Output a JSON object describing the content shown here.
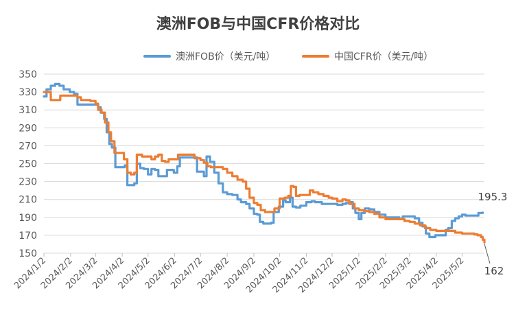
{
  "chart_data": {
    "type": "line",
    "title": "澳洲FOB与中国CFR价格对比",
    "ylim": [
      150,
      350
    ],
    "yticks": [
      "150",
      "170",
      "190",
      "210",
      "230",
      "250",
      "270",
      "290",
      "310",
      "330",
      "350"
    ],
    "xticks": [
      "2024/1/2",
      "2024/2/2",
      "2024/3/2",
      "2024/4/2",
      "2024/5/2",
      "2024/6/2",
      "2024/7/2",
      "2024/8/2",
      "2024/9/2",
      "2024/10/2",
      "2024/11/2",
      "2024/12/2",
      "2025/1/2",
      "2025/2/2",
      "2025/3/2",
      "2025/4/2",
      "2025/5/2"
    ],
    "grid": true,
    "legend_position": "top",
    "series": [
      {
        "name": "澳洲FOB价（美元/吨）",
        "color": "#5B9BD5",
        "points": [
          [
            "2024/1/2",
            325
          ],
          [
            "2024/1/5",
            333
          ],
          [
            "2024/1/10",
            337
          ],
          [
            "2024/1/15",
            339
          ],
          [
            "2024/1/20",
            337
          ],
          [
            "2024/1/25",
            333
          ],
          [
            "2024/2/1",
            330
          ],
          [
            "2024/2/6",
            328
          ],
          [
            "2024/2/10",
            316
          ],
          [
            "2024/2/20",
            316
          ],
          [
            "2024/3/1",
            316
          ],
          [
            "2024/3/5",
            313
          ],
          [
            "2024/3/8",
            307
          ],
          [
            "2024/3/12",
            300
          ],
          [
            "2024/3/15",
            285
          ],
          [
            "2024/3/18",
            272
          ],
          [
            "2024/3/21",
            268
          ],
          [
            "2024/3/25",
            246
          ],
          [
            "2024/4/1",
            246
          ],
          [
            "2024/4/5",
            248
          ],
          [
            "2024/4/8",
            226
          ],
          [
            "2024/4/12",
            226
          ],
          [
            "2024/4/16",
            228
          ],
          [
            "2024/4/19",
            250
          ],
          [
            "2024/4/23",
            245
          ],
          [
            "2024/4/27",
            244
          ],
          [
            "2024/5/2",
            238
          ],
          [
            "2024/5/6",
            244
          ],
          [
            "2024/5/10",
            243
          ],
          [
            "2024/5/14",
            236
          ],
          [
            "2024/5/20",
            236
          ],
          [
            "2024/5/24",
            243
          ],
          [
            "2024/6/1",
            240
          ],
          [
            "2024/6/5",
            247
          ],
          [
            "2024/6/8",
            257
          ],
          [
            "2024/6/15",
            257
          ],
          [
            "2024/6/25",
            257
          ],
          [
            "2024/6/28",
            241
          ],
          [
            "2024/7/2",
            241
          ],
          [
            "2024/7/6",
            236
          ],
          [
            "2024/7/9",
            258
          ],
          [
            "2024/7/13",
            252
          ],
          [
            "2024/7/18",
            240
          ],
          [
            "2024/7/23",
            228
          ],
          [
            "2024/7/28",
            218
          ],
          [
            "2024/8/2",
            216
          ],
          [
            "2024/8/8",
            215
          ],
          [
            "2024/8/14",
            210
          ],
          [
            "2024/8/18",
            207
          ],
          [
            "2024/8/24",
            205
          ],
          [
            "2024/8/28",
            200
          ],
          [
            "2024/9/2",
            194
          ],
          [
            "2024/9/6",
            193
          ],
          [
            "2024/9/9",
            185
          ],
          [
            "2024/9/13",
            183
          ],
          [
            "2024/9/18",
            183
          ],
          [
            "2024/9/22",
            184
          ],
          [
            "2024/9/25",
            196
          ],
          [
            "2024/10/1",
            202
          ],
          [
            "2024/10/6",
            209
          ],
          [
            "2024/10/9",
            207
          ],
          [
            "2024/10/14",
            212
          ],
          [
            "2024/10/17",
            202
          ],
          [
            "2024/10/21",
            201
          ],
          [
            "2024/10/26",
            203
          ],
          [
            "2024/11/2",
            207
          ],
          [
            "2024/11/8",
            208
          ],
          [
            "2024/11/12",
            207
          ],
          [
            "2024/11/20",
            205
          ],
          [
            "2024/11/28",
            205
          ],
          [
            "2024/12/2",
            205
          ],
          [
            "2024/12/8",
            204
          ],
          [
            "2024/12/14",
            205
          ],
          [
            "2024/12/18",
            206
          ],
          [
            "2024/12/22",
            207
          ],
          [
            "2024/12/26",
            200
          ],
          [
            "2024/12/29",
            195
          ],
          [
            "2025/1/2",
            188
          ],
          [
            "2025/1/5",
            195
          ],
          [
            "2025/1/9",
            200
          ],
          [
            "2025/1/14",
            199
          ],
          [
            "2025/1/20",
            196
          ],
          [
            "2025/1/26",
            193
          ],
          [
            "2025/2/2",
            190
          ],
          [
            "2025/2/8",
            190
          ],
          [
            "2025/2/14",
            190
          ],
          [
            "2025/2/18",
            188
          ],
          [
            "2025/2/22",
            191
          ],
          [
            "2025/3/2",
            191
          ],
          [
            "2025/3/8",
            189
          ],
          [
            "2025/3/13",
            184
          ],
          [
            "2025/3/17",
            180
          ],
          [
            "2025/3/21",
            172
          ],
          [
            "2025/3/25",
            168
          ],
          [
            "2025/4/1",
            170
          ],
          [
            "2025/4/8",
            170
          ],
          [
            "2025/4/13",
            176
          ],
          [
            "2025/4/16",
            178
          ],
          [
            "2025/4/20",
            186
          ],
          [
            "2025/4/24",
            189
          ],
          [
            "2025/4/28",
            191
          ],
          [
            "2025/5/2",
            193
          ],
          [
            "2025/5/6",
            192
          ],
          [
            "2025/5/12",
            192
          ],
          [
            "2025/5/18",
            192
          ],
          [
            "2025/5/21",
            195
          ],
          [
            "2025/5/26",
            195.3
          ]
        ]
      },
      {
        "name": "中国CFR价（美元/吨）",
        "color": "#ED7D31",
        "points": [
          [
            "2024/1/2",
            330
          ],
          [
            "2024/1/6",
            330
          ],
          [
            "2024/1/10",
            321
          ],
          [
            "2024/1/17",
            321
          ],
          [
            "2024/1/21",
            326
          ],
          [
            "2024/2/1",
            326
          ],
          [
            "2024/2/10",
            324
          ],
          [
            "2024/2/14",
            321
          ],
          [
            "2024/2/25",
            320
          ],
          [
            "2024/3/2",
            317
          ],
          [
            "2024/3/5",
            310
          ],
          [
            "2024/3/9",
            307
          ],
          [
            "2024/3/13",
            296
          ],
          [
            "2024/3/17",
            285
          ],
          [
            "2024/3/20",
            275
          ],
          [
            "2024/3/24",
            262
          ],
          [
            "2024/4/1",
            262
          ],
          [
            "2024/4/4",
            255
          ],
          [
            "2024/4/8",
            240
          ],
          [
            "2024/4/12",
            238
          ],
          [
            "2024/4/16",
            240
          ],
          [
            "2024/4/19",
            260
          ],
          [
            "2024/4/25",
            258
          ],
          [
            "2024/5/2",
            258
          ],
          [
            "2024/5/6",
            255
          ],
          [
            "2024/5/10",
            258
          ],
          [
            "2024/5/14",
            260
          ],
          [
            "2024/5/18",
            253
          ],
          [
            "2024/5/22",
            252
          ],
          [
            "2024/5/26",
            255
          ],
          [
            "2024/6/2",
            255
          ],
          [
            "2024/6/6",
            260
          ],
          [
            "2024/6/12",
            260
          ],
          [
            "2024/6/18",
            260
          ],
          [
            "2024/6/25",
            256
          ],
          [
            "2024/7/2",
            254
          ],
          [
            "2024/7/6",
            251
          ],
          [
            "2024/7/10",
            247
          ],
          [
            "2024/7/14",
            246
          ],
          [
            "2024/7/22",
            246
          ],
          [
            "2024/7/28",
            244
          ],
          [
            "2024/8/2",
            240
          ],
          [
            "2024/8/8",
            236
          ],
          [
            "2024/8/14",
            232
          ],
          [
            "2024/8/20",
            230
          ],
          [
            "2024/8/24",
            222
          ],
          [
            "2024/8/28",
            212
          ],
          [
            "2024/9/2",
            206
          ],
          [
            "2024/9/6",
            204
          ],
          [
            "2024/9/10",
            198
          ],
          [
            "2024/9/15",
            196
          ],
          [
            "2024/9/20",
            196
          ],
          [
            "2024/9/26",
            200
          ],
          [
            "2024/10/2",
            211
          ],
          [
            "2024/10/8",
            212
          ],
          [
            "2024/10/12",
            214
          ],
          [
            "2024/10/15",
            225
          ],
          [
            "2024/10/18",
            224
          ],
          [
            "2024/10/21",
            214
          ],
          [
            "2024/10/25",
            215
          ],
          [
            "2024/11/2",
            215
          ],
          [
            "2024/11/6",
            220
          ],
          [
            "2024/11/10",
            218
          ],
          [
            "2024/11/16",
            216
          ],
          [
            "2024/11/22",
            214
          ],
          [
            "2024/11/28",
            212
          ],
          [
            "2024/12/2",
            211
          ],
          [
            "2024/12/8",
            208
          ],
          [
            "2024/12/14",
            210
          ],
          [
            "2024/12/18",
            209
          ],
          [
            "2024/12/22",
            205
          ],
          [
            "2024/12/28",
            200
          ],
          [
            "2025/1/2",
            198
          ],
          [
            "2025/1/8",
            197
          ],
          [
            "2025/1/14",
            196
          ],
          [
            "2025/1/20",
            194
          ],
          [
            "2025/1/26",
            190
          ],
          [
            "2025/2/2",
            188
          ],
          [
            "2025/2/10",
            188
          ],
          [
            "2025/2/18",
            188
          ],
          [
            "2025/2/24",
            186
          ],
          [
            "2025/3/2",
            185
          ],
          [
            "2025/3/8",
            183
          ],
          [
            "2025/3/14",
            181
          ],
          [
            "2025/3/20",
            178
          ],
          [
            "2025/3/26",
            176
          ],
          [
            "2025/4/2",
            175
          ],
          [
            "2025/4/10",
            175
          ],
          [
            "2025/4/18",
            175
          ],
          [
            "2025/4/24",
            173
          ],
          [
            "2025/5/2",
            172
          ],
          [
            "2025/5/10",
            172
          ],
          [
            "2025/5/16",
            171
          ],
          [
            "2025/5/20",
            170
          ],
          [
            "2025/5/24",
            168
          ],
          [
            "2025/5/26",
            165
          ],
          [
            "2025/5/28",
            162
          ]
        ]
      }
    ],
    "annotations": [
      {
        "label": "195.3",
        "series": 0
      },
      {
        "label": "162",
        "series": 1
      }
    ]
  }
}
